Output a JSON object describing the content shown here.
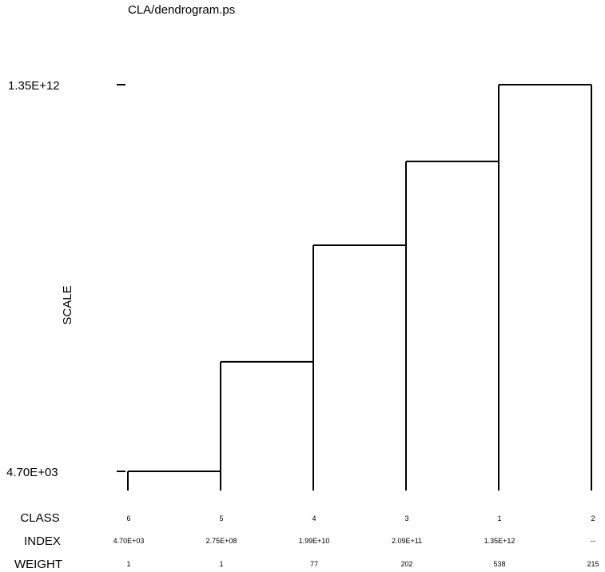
{
  "title": "CLA/dendrogram.ps",
  "axis": {
    "label": "SCALE",
    "top_tick": "1.35E+12",
    "bottom_tick": "4.70E+03"
  },
  "rows": {
    "class_label": "CLASS",
    "index_label": "INDEX",
    "weight_label": "WEIGHT"
  },
  "leaves": [
    {
      "class": "6",
      "index": "4.70E+03",
      "weight": "1"
    },
    {
      "class": "5",
      "index": "2.75E+08",
      "weight": "1"
    },
    {
      "class": "4",
      "index": "1.99E+10",
      "weight": "77"
    },
    {
      "class": "3",
      "index": "2.09E+11",
      "weight": "202"
    },
    {
      "class": "1",
      "index": "1.35E+12",
      "weight": "538"
    },
    {
      "class": "2",
      "index": "--",
      "weight": "215"
    }
  ],
  "chart_data": {
    "type": "dendrogram",
    "leaf_order": [
      "6",
      "5",
      "4",
      "3",
      "1",
      "2"
    ],
    "merges": [
      {
        "left_leaf": 0,
        "right_leaf": 1,
        "height": 4700
      },
      {
        "left_leaf": 1,
        "right_leaf": 2,
        "height": 275000000
      },
      {
        "left_leaf": 2,
        "right_leaf": 3,
        "height": 19900000000
      },
      {
        "left_leaf": 3,
        "right_leaf": 4,
        "height": 209000000000
      },
      {
        "left_leaf": 4,
        "right_leaf": 5,
        "height": 1350000000000
      }
    ],
    "ylim": [
      4700,
      1350000000000
    ]
  }
}
